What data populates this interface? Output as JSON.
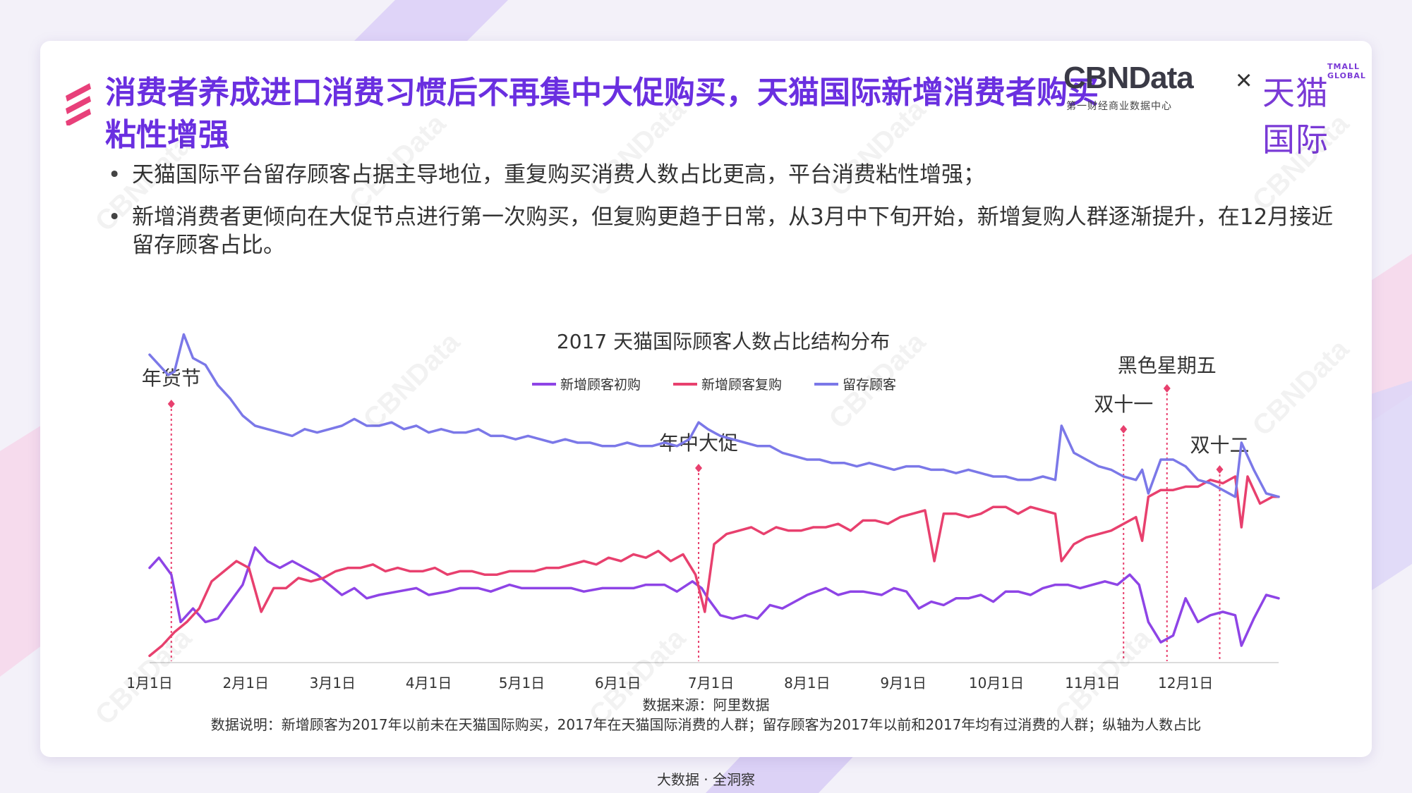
{
  "title": "消费者养成进口消费习惯后不再集中大促购买，天猫国际新增消费者购买粘性增强",
  "logo": {
    "cbndata": "CBNData",
    "cbndata_sub": "第一财经商业数据中心",
    "times": "×",
    "tmall_en": "TMALL GLOBAL",
    "tmall": "天猫国际"
  },
  "bullets": [
    "天猫国际平台留存顾客占据主导地位，重复购买消费人数占比更高，平台消费粘性增强；",
    "新增消费者更倾向在大促节点进行第一次购买，但复购更趋于日常，从3月中下旬开始，新增复购人群逐渐提升，在12月接近留存顾客占比。"
  ],
  "watermark": "CBNData",
  "chart_data": {
    "type": "line",
    "title": "2017 天猫国际顾客人数占比结构分布",
    "x_ticks": [
      "1月1日",
      "2月1日",
      "3月1日",
      "4月1日",
      "5月1日",
      "6月1日",
      "7月1日",
      "8月1日",
      "9月1日",
      "10月1日",
      "11月1日",
      "12月1日"
    ],
    "x_tick_days": [
      0,
      31,
      59,
      90,
      120,
      151,
      181,
      212,
      243,
      273,
      304,
      334
    ],
    "x_range_days": [
      0,
      364
    ],
    "grid": false,
    "legend_position": "top-center",
    "series": [
      {
        "name": "新增顾客初购",
        "color": "#8e44e6",
        "values": [
          [
            0,
            0.28
          ],
          [
            3,
            0.31
          ],
          [
            7,
            0.26
          ],
          [
            10,
            0.12
          ],
          [
            14,
            0.16
          ],
          [
            18,
            0.12
          ],
          [
            22,
            0.13
          ],
          [
            26,
            0.18
          ],
          [
            30,
            0.23
          ],
          [
            34,
            0.34
          ],
          [
            38,
            0.3
          ],
          [
            42,
            0.28
          ],
          [
            46,
            0.3
          ],
          [
            50,
            0.28
          ],
          [
            54,
            0.26
          ],
          [
            58,
            0.23
          ],
          [
            62,
            0.2
          ],
          [
            66,
            0.22
          ],
          [
            70,
            0.19
          ],
          [
            74,
            0.2
          ],
          [
            80,
            0.21
          ],
          [
            86,
            0.22
          ],
          [
            90,
            0.2
          ],
          [
            96,
            0.21
          ],
          [
            100,
            0.22
          ],
          [
            106,
            0.22
          ],
          [
            110,
            0.21
          ],
          [
            116,
            0.23
          ],
          [
            120,
            0.22
          ],
          [
            126,
            0.22
          ],
          [
            130,
            0.22
          ],
          [
            136,
            0.22
          ],
          [
            140,
            0.21
          ],
          [
            146,
            0.22
          ],
          [
            150,
            0.22
          ],
          [
            156,
            0.22
          ],
          [
            160,
            0.23
          ],
          [
            166,
            0.23
          ],
          [
            170,
            0.21
          ],
          [
            175,
            0.24
          ],
          [
            178,
            0.22
          ],
          [
            180,
            0.19
          ],
          [
            184,
            0.14
          ],
          [
            188,
            0.13
          ],
          [
            192,
            0.14
          ],
          [
            196,
            0.13
          ],
          [
            200,
            0.17
          ],
          [
            204,
            0.16
          ],
          [
            208,
            0.18
          ],
          [
            212,
            0.2
          ],
          [
            218,
            0.22
          ],
          [
            222,
            0.2
          ],
          [
            226,
            0.21
          ],
          [
            230,
            0.21
          ],
          [
            236,
            0.2
          ],
          [
            240,
            0.22
          ],
          [
            244,
            0.21
          ],
          [
            248,
            0.16
          ],
          [
            252,
            0.18
          ],
          [
            256,
            0.17
          ],
          [
            260,
            0.19
          ],
          [
            264,
            0.19
          ],
          [
            268,
            0.2
          ],
          [
            272,
            0.18
          ],
          [
            276,
            0.21
          ],
          [
            280,
            0.21
          ],
          [
            284,
            0.2
          ],
          [
            288,
            0.22
          ],
          [
            292,
            0.23
          ],
          [
            296,
            0.23
          ],
          [
            300,
            0.22
          ],
          [
            304,
            0.23
          ],
          [
            308,
            0.24
          ],
          [
            312,
            0.23
          ],
          [
            316,
            0.26
          ],
          [
            319,
            0.23
          ],
          [
            322,
            0.12
          ],
          [
            326,
            0.06
          ],
          [
            330,
            0.08
          ],
          [
            334,
            0.19
          ],
          [
            338,
            0.12
          ],
          [
            342,
            0.14
          ],
          [
            346,
            0.15
          ],
          [
            350,
            0.14
          ],
          [
            352,
            0.05
          ],
          [
            356,
            0.13
          ],
          [
            360,
            0.2
          ],
          [
            364,
            0.19
          ]
        ]
      },
      {
        "name": "新增顾客复购",
        "color": "#e8406e",
        "values": [
          [
            0,
            0.02
          ],
          [
            4,
            0.05
          ],
          [
            8,
            0.09
          ],
          [
            12,
            0.12
          ],
          [
            16,
            0.16
          ],
          [
            20,
            0.24
          ],
          [
            24,
            0.27
          ],
          [
            28,
            0.3
          ],
          [
            32,
            0.28
          ],
          [
            36,
            0.15
          ],
          [
            40,
            0.22
          ],
          [
            44,
            0.22
          ],
          [
            48,
            0.25
          ],
          [
            52,
            0.24
          ],
          [
            56,
            0.25
          ],
          [
            60,
            0.27
          ],
          [
            64,
            0.28
          ],
          [
            68,
            0.28
          ],
          [
            72,
            0.29
          ],
          [
            76,
            0.27
          ],
          [
            80,
            0.28
          ],
          [
            84,
            0.27
          ],
          [
            88,
            0.27
          ],
          [
            92,
            0.28
          ],
          [
            96,
            0.26
          ],
          [
            100,
            0.27
          ],
          [
            104,
            0.27
          ],
          [
            108,
            0.26
          ],
          [
            112,
            0.26
          ],
          [
            116,
            0.27
          ],
          [
            120,
            0.27
          ],
          [
            124,
            0.27
          ],
          [
            128,
            0.28
          ],
          [
            132,
            0.28
          ],
          [
            136,
            0.29
          ],
          [
            140,
            0.3
          ],
          [
            144,
            0.29
          ],
          [
            148,
            0.31
          ],
          [
            152,
            0.3
          ],
          [
            156,
            0.32
          ],
          [
            160,
            0.31
          ],
          [
            164,
            0.33
          ],
          [
            168,
            0.3
          ],
          [
            172,
            0.32
          ],
          [
            176,
            0.26
          ],
          [
            179,
            0.15
          ],
          [
            182,
            0.35
          ],
          [
            186,
            0.38
          ],
          [
            190,
            0.39
          ],
          [
            194,
            0.4
          ],
          [
            198,
            0.38
          ],
          [
            202,
            0.4
          ],
          [
            206,
            0.39
          ],
          [
            210,
            0.39
          ],
          [
            214,
            0.4
          ],
          [
            218,
            0.4
          ],
          [
            222,
            0.41
          ],
          [
            226,
            0.39
          ],
          [
            230,
            0.42
          ],
          [
            234,
            0.42
          ],
          [
            238,
            0.41
          ],
          [
            242,
            0.43
          ],
          [
            246,
            0.44
          ],
          [
            250,
            0.45
          ],
          [
            253,
            0.3
          ],
          [
            256,
            0.44
          ],
          [
            260,
            0.44
          ],
          [
            264,
            0.43
          ],
          [
            268,
            0.44
          ],
          [
            272,
            0.46
          ],
          [
            276,
            0.46
          ],
          [
            280,
            0.44
          ],
          [
            284,
            0.46
          ],
          [
            288,
            0.45
          ],
          [
            292,
            0.44
          ],
          [
            294,
            0.3
          ],
          [
            298,
            0.35
          ],
          [
            302,
            0.37
          ],
          [
            306,
            0.38
          ],
          [
            310,
            0.39
          ],
          [
            314,
            0.41
          ],
          [
            318,
            0.43
          ],
          [
            320,
            0.36
          ],
          [
            322,
            0.49
          ],
          [
            326,
            0.51
          ],
          [
            330,
            0.51
          ],
          [
            334,
            0.52
          ],
          [
            338,
            0.52
          ],
          [
            342,
            0.54
          ],
          [
            346,
            0.53
          ],
          [
            350,
            0.55
          ],
          [
            352,
            0.4
          ],
          [
            354,
            0.55
          ],
          [
            358,
            0.47
          ],
          [
            362,
            0.49
          ],
          [
            364,
            0.49
          ]
        ]
      },
      {
        "name": "留存顾客",
        "color": "#7b78e8",
        "values": [
          [
            0,
            0.91
          ],
          [
            3,
            0.88
          ],
          [
            6,
            0.85
          ],
          [
            8,
            0.86
          ],
          [
            11,
            0.97
          ],
          [
            14,
            0.9
          ],
          [
            18,
            0.88
          ],
          [
            22,
            0.82
          ],
          [
            26,
            0.78
          ],
          [
            30,
            0.73
          ],
          [
            34,
            0.7
          ],
          [
            38,
            0.69
          ],
          [
            42,
            0.68
          ],
          [
            46,
            0.67
          ],
          [
            50,
            0.69
          ],
          [
            54,
            0.68
          ],
          [
            58,
            0.69
          ],
          [
            62,
            0.7
          ],
          [
            66,
            0.72
          ],
          [
            70,
            0.7
          ],
          [
            74,
            0.7
          ],
          [
            78,
            0.71
          ],
          [
            82,
            0.69
          ],
          [
            86,
            0.7
          ],
          [
            90,
            0.68
          ],
          [
            94,
            0.69
          ],
          [
            98,
            0.68
          ],
          [
            102,
            0.68
          ],
          [
            106,
            0.69
          ],
          [
            110,
            0.67
          ],
          [
            114,
            0.67
          ],
          [
            118,
            0.66
          ],
          [
            122,
            0.67
          ],
          [
            126,
            0.66
          ],
          [
            130,
            0.65
          ],
          [
            134,
            0.66
          ],
          [
            138,
            0.65
          ],
          [
            142,
            0.65
          ],
          [
            146,
            0.64
          ],
          [
            150,
            0.64
          ],
          [
            154,
            0.65
          ],
          [
            158,
            0.64
          ],
          [
            162,
            0.64
          ],
          [
            166,
            0.65
          ],
          [
            170,
            0.64
          ],
          [
            174,
            0.66
          ],
          [
            177,
            0.71
          ],
          [
            180,
            0.69
          ],
          [
            184,
            0.67
          ],
          [
            188,
            0.66
          ],
          [
            192,
            0.65
          ],
          [
            196,
            0.64
          ],
          [
            200,
            0.64
          ],
          [
            204,
            0.62
          ],
          [
            208,
            0.61
          ],
          [
            212,
            0.6
          ],
          [
            216,
            0.6
          ],
          [
            220,
            0.59
          ],
          [
            224,
            0.59
          ],
          [
            228,
            0.58
          ],
          [
            232,
            0.59
          ],
          [
            236,
            0.58
          ],
          [
            240,
            0.57
          ],
          [
            244,
            0.58
          ],
          [
            248,
            0.58
          ],
          [
            252,
            0.57
          ],
          [
            256,
            0.57
          ],
          [
            260,
            0.56
          ],
          [
            264,
            0.57
          ],
          [
            268,
            0.56
          ],
          [
            272,
            0.55
          ],
          [
            276,
            0.55
          ],
          [
            280,
            0.54
          ],
          [
            284,
            0.54
          ],
          [
            288,
            0.55
          ],
          [
            292,
            0.54
          ],
          [
            294,
            0.7
          ],
          [
            298,
            0.62
          ],
          [
            302,
            0.6
          ],
          [
            306,
            0.58
          ],
          [
            310,
            0.57
          ],
          [
            314,
            0.55
          ],
          [
            318,
            0.54
          ],
          [
            320,
            0.57
          ],
          [
            322,
            0.5
          ],
          [
            326,
            0.6
          ],
          [
            330,
            0.6
          ],
          [
            334,
            0.58
          ],
          [
            338,
            0.54
          ],
          [
            342,
            0.53
          ],
          [
            346,
            0.51
          ],
          [
            350,
            0.49
          ],
          [
            352,
            0.65
          ],
          [
            356,
            0.57
          ],
          [
            360,
            0.5
          ],
          [
            364,
            0.49
          ]
        ]
      }
    ],
    "events": [
      {
        "label": "年货节",
        "day": 7
      },
      {
        "label": "年中大促",
        "day": 177
      },
      {
        "label": "双十一",
        "day": 314
      },
      {
        "label": "黑色星期五",
        "day": 328
      },
      {
        "label": "双十二",
        "day": 345
      }
    ]
  },
  "footer": {
    "source": "数据来源：阿里数据",
    "note": "数据说明：新增顾客为2017年以前未在天猫国际购买，2017年在天猫国际消费的人群；留存顾客为2017年以前和2017年均有过消费的人群；纵轴为人数占比"
  },
  "page_footer": "大数据 · 全洞察"
}
